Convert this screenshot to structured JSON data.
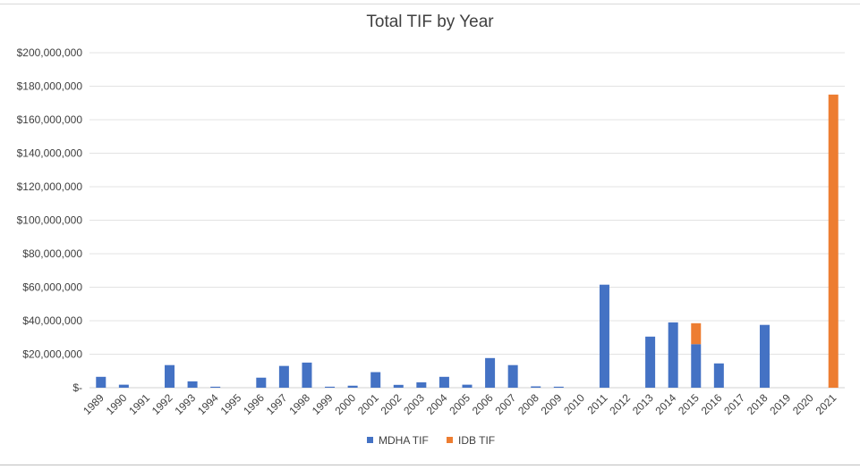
{
  "chart_data": {
    "type": "bar",
    "stacked": true,
    "title": "Total TIF by Year",
    "xlabel": "",
    "ylabel": "",
    "ylim": [
      0,
      200000000
    ],
    "yticks": [
      {
        "value": 0,
        "label": "$-"
      },
      {
        "value": 20000000,
        "label": "$20,000,000"
      },
      {
        "value": 40000000,
        "label": "$40,000,000"
      },
      {
        "value": 60000000,
        "label": "$60,000,000"
      },
      {
        "value": 80000000,
        "label": "$80,000,000"
      },
      {
        "value": 100000000,
        "label": "$100,000,000"
      },
      {
        "value": 120000000,
        "label": "$120,000,000"
      },
      {
        "value": 140000000,
        "label": "$140,000,000"
      },
      {
        "value": 160000000,
        "label": "$160,000,000"
      },
      {
        "value": 180000000,
        "label": "$180,000,000"
      },
      {
        "value": 200000000,
        "label": "$200,000,000"
      }
    ],
    "grid": true,
    "legend": "bottom",
    "categories": [
      "1989",
      "1990",
      "1991",
      "1992",
      "1993",
      "1994",
      "1995",
      "1996",
      "1997",
      "1998",
      "1999",
      "2000",
      "2001",
      "2002",
      "2003",
      "2004",
      "2005",
      "2006",
      "2007",
      "2008",
      "2009",
      "2010",
      "2011",
      "2012",
      "2013",
      "2014",
      "2015",
      "2016",
      "2017",
      "2018",
      "2019",
      "2020",
      "2021"
    ],
    "series": [
      {
        "name": "MDHA TIF",
        "color": "#4472c4",
        "values": [
          6500000,
          1800000,
          0,
          13500000,
          3800000,
          600000,
          0,
          6000000,
          13000000,
          15000000,
          600000,
          1200000,
          9300000,
          1700000,
          3200000,
          6500000,
          1800000,
          17700000,
          13500000,
          800000,
          600000,
          0,
          61500000,
          0,
          30500000,
          39000000,
          26000000,
          14500000,
          0,
          37500000,
          0,
          0,
          0
        ]
      },
      {
        "name": "IDB TIF",
        "color": "#ed7d31",
        "values": [
          0,
          0,
          0,
          0,
          0,
          0,
          0,
          0,
          0,
          0,
          0,
          0,
          0,
          0,
          0,
          0,
          0,
          0,
          0,
          0,
          0,
          0,
          0,
          0,
          0,
          0,
          12500000,
          0,
          0,
          0,
          0,
          0,
          175000000
        ]
      }
    ]
  }
}
